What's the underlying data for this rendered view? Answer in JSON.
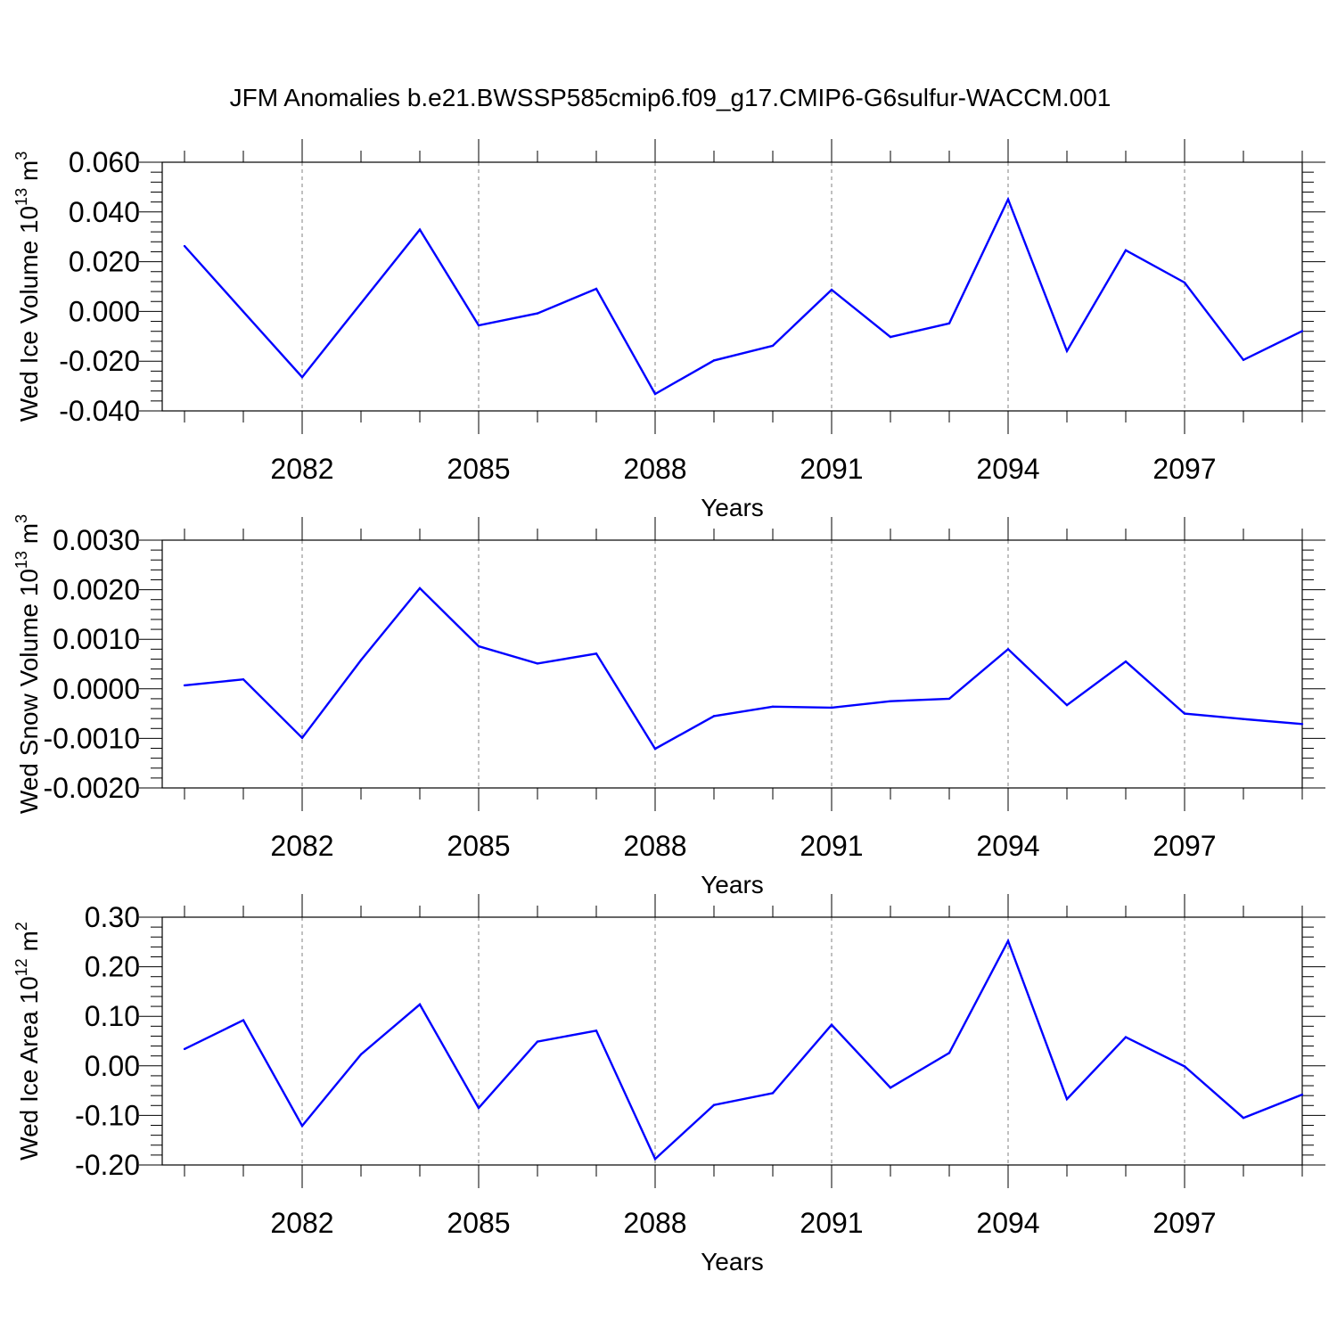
{
  "title": "JFM Anomalies b.e21.BWSSP585cmip6.f09_g17.CMIP6-G6sulfur-WACCM.001",
  "line_color": "#0000ff",
  "chart_data": [
    {
      "type": "line",
      "ylabel_main": "Wed Ice Volume 10",
      "ylabel_exp": "13",
      "ylabel_unit": "m",
      "ylabel_unit_exp": "3",
      "xlabel": "Years",
      "xlim": [
        2080,
        2099
      ],
      "ylim": [
        -0.04,
        0.06
      ],
      "yticks": [
        -0.04,
        -0.02,
        0.0,
        0.02,
        0.04,
        0.06
      ],
      "yticklabels": [
        "-0.040",
        "-0.020",
        "0.000",
        "0.020",
        "0.040",
        "0.060"
      ],
      "xticks": [
        2082,
        2085,
        2088,
        2091,
        2094,
        2097
      ],
      "xticklabels": [
        "2082",
        "2085",
        "2088",
        "2091",
        "2094",
        "2097"
      ],
      "x": [
        2080,
        2081,
        2082,
        2083,
        2084,
        2085,
        2086,
        2087,
        2088,
        2089,
        2090,
        2091,
        2092,
        2093,
        2094,
        2095,
        2096,
        2097,
        2098,
        2099
      ],
      "values": [
        0.0263,
        -0.0001,
        -0.0264,
        0.0033,
        0.0329,
        -0.0056,
        -0.0008,
        0.0091,
        -0.0332,
        -0.0197,
        -0.0138,
        0.0087,
        -0.0103,
        -0.0048,
        0.0451,
        -0.0159,
        0.0246,
        0.0116,
        -0.0195,
        -0.0079
      ]
    },
    {
      "type": "line",
      "ylabel_main": "Wed Snow Volume 10",
      "ylabel_exp": "13",
      "ylabel_unit": "m",
      "ylabel_unit_exp": "3",
      "xlabel": "Years",
      "xlim": [
        2080,
        2099
      ],
      "ylim": [
        -0.002,
        0.003
      ],
      "yticks": [
        -0.002,
        -0.001,
        0.0,
        0.001,
        0.002,
        0.003
      ],
      "yticklabels": [
        "-0.0020",
        "-0.0010",
        "0.0000",
        "0.0010",
        "0.0020",
        "0.0030"
      ],
      "xticks": [
        2082,
        2085,
        2088,
        2091,
        2094,
        2097
      ],
      "xticklabels": [
        "2082",
        "2085",
        "2088",
        "2091",
        "2094",
        "2097"
      ],
      "x": [
        2080,
        2081,
        2082,
        2083,
        2084,
        2085,
        2086,
        2087,
        2088,
        2089,
        2090,
        2091,
        2092,
        2093,
        2094,
        2095,
        2096,
        2097,
        2098,
        2099
      ],
      "values": [
        7e-05,
        0.00019,
        -0.00099,
        0.00058,
        0.00203,
        0.00086,
        0.00051,
        0.00071,
        -0.00121,
        -0.00055,
        -0.00036,
        -0.00038,
        -0.00025,
        -0.0002,
        0.0008,
        -0.00033,
        0.00055,
        -0.0005,
        -0.00061,
        -0.00071
      ]
    },
    {
      "type": "line",
      "ylabel_main": "Wed Ice Area 10",
      "ylabel_exp": "12",
      "ylabel_unit": "m",
      "ylabel_unit_exp": "2",
      "xlabel": "Years",
      "xlim": [
        2080,
        2099
      ],
      "ylim": [
        -0.2,
        0.3
      ],
      "yticks": [
        -0.2,
        -0.1,
        0.0,
        0.1,
        0.2,
        0.3
      ],
      "yticklabels": [
        "-0.20",
        "-0.10",
        "0.00",
        "0.10",
        "0.20",
        "0.30"
      ],
      "xticks": [
        2082,
        2085,
        2088,
        2091,
        2094,
        2097
      ],
      "xticklabels": [
        "2082",
        "2085",
        "2088",
        "2091",
        "2094",
        "2097"
      ],
      "x": [
        2080,
        2081,
        2082,
        2083,
        2084,
        2085,
        2086,
        2087,
        2088,
        2089,
        2090,
        2091,
        2092,
        2093,
        2094,
        2095,
        2096,
        2097,
        2098,
        2099
      ],
      "values": [
        0.034,
        0.092,
        -0.121,
        0.023,
        0.124,
        -0.085,
        0.049,
        0.071,
        -0.188,
        -0.079,
        -0.055,
        0.083,
        -0.044,
        0.026,
        0.252,
        -0.067,
        0.058,
        -0.001,
        -0.105,
        -0.058
      ]
    }
  ]
}
